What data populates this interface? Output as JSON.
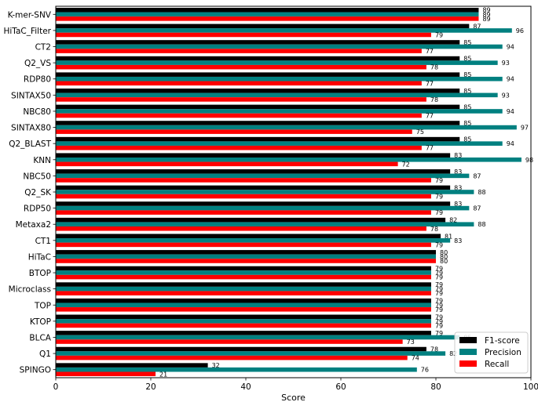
{
  "chart_data": {
    "type": "bar",
    "orientation": "horizontal",
    "xlabel": "Score",
    "xlim": [
      0,
      100
    ],
    "xticks": [
      0,
      20,
      40,
      60,
      80,
      100
    ],
    "categories": [
      "K-mer-SNV",
      "HiTaC_Filter",
      "CT2",
      "Q2_VS",
      "RDP80",
      "SINTAX50",
      "NBC80",
      "SINTAX80",
      "Q2_BLAST",
      "KNN",
      "NBC50",
      "Q2_SK",
      "RDP50",
      "Metaxa2",
      "CT1",
      "HiTaC",
      "BTOP",
      "Microclass",
      "TOP",
      "KTOP",
      "BLCA",
      "Q1",
      "SPINGO"
    ],
    "series": [
      {
        "name": "F1-score",
        "color": "#000000",
        "values": [
          89,
          87,
          85,
          85,
          85,
          85,
          85,
          85,
          85,
          83,
          83,
          83,
          83,
          82,
          81,
          80,
          79,
          79,
          79,
          79,
          79,
          78,
          32
        ]
      },
      {
        "name": "Precision",
        "color": "#008080",
        "values": [
          89,
          96,
          94,
          93,
          94,
          93,
          94,
          97,
          94,
          98,
          87,
          88,
          87,
          88,
          83,
          80,
          79,
          79,
          79,
          79,
          85,
          82,
          76
        ]
      },
      {
        "name": "Recall",
        "color": "#ff0000",
        "values": [
          89,
          79,
          77,
          78,
          77,
          78,
          77,
          75,
          77,
          72,
          79,
          79,
          79,
          78,
          79,
          80,
          79,
          79,
          79,
          79,
          73,
          74,
          21
        ]
      }
    ],
    "legend_position": "bottom-right",
    "grid": false
  }
}
